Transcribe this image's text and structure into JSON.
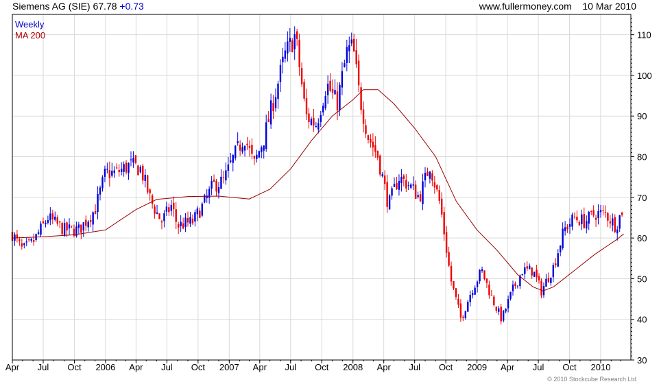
{
  "header": {
    "instrument": "Siemens AG (SIE)",
    "last": "67.78",
    "change": "+0.73",
    "site": "www.fullermoney.com",
    "date": "10 Mar 2010"
  },
  "footer": {
    "credit": "© 2010 Stockcube Research Ltd"
  },
  "colors": {
    "up": "#0000dd",
    "down": "#ee0000",
    "ma": "#990000",
    "grid": "#d9d9d9",
    "legend_weekly": "#0000cc",
    "legend_ma": "#aa0000"
  },
  "chart_data": {
    "type": "candlestick",
    "legend": [
      {
        "name": "Weekly"
      },
      {
        "name": "MA 200"
      }
    ],
    "x_tick_labels": [
      "Apr",
      "Jul",
      "Oct",
      "2006",
      "Apr",
      "Jul",
      "Oct",
      "2007",
      "Apr",
      "Jul",
      "Oct",
      "2008",
      "Apr",
      "Jul",
      "Oct",
      "2009",
      "Apr",
      "Jul",
      "Oct",
      "2010"
    ],
    "y_ticks": [
      30,
      40,
      50,
      60,
      70,
      80,
      90,
      100,
      110
    ],
    "ylim": [
      30,
      115
    ],
    "xlim": [
      "2005-04-01",
      "2010-03-31"
    ],
    "grid": true,
    "weekly_close_keypoints": [
      [
        "2005-04-01",
        61
      ],
      [
        "2005-05-01",
        57
      ],
      [
        "2005-06-01",
        59
      ],
      [
        "2005-07-15",
        65
      ],
      [
        "2005-09-01",
        62
      ],
      [
        "2005-10-15",
        62
      ],
      [
        "2005-12-01",
        67
      ],
      [
        "2006-01-01",
        76
      ],
      [
        "2006-02-01",
        76
      ],
      [
        "2006-03-15",
        78
      ],
      [
        "2006-04-15",
        77
      ],
      [
        "2006-05-15",
        69
      ],
      [
        "2006-06-15",
        64
      ],
      [
        "2006-07-15",
        68
      ],
      [
        "2006-08-01",
        63
      ],
      [
        "2006-09-15",
        64
      ],
      [
        "2006-10-15",
        68
      ],
      [
        "2006-11-15",
        73
      ],
      [
        "2006-12-15",
        74
      ],
      [
        "2007-01-15",
        80
      ],
      [
        "2007-02-15",
        85
      ],
      [
        "2007-03-15",
        78
      ],
      [
        "2007-04-15",
        85
      ],
      [
        "2007-05-15",
        95
      ],
      [
        "2007-06-15",
        105
      ],
      [
        "2007-07-15",
        110
      ],
      [
        "2007-08-15",
        90
      ],
      [
        "2007-09-15",
        88
      ],
      [
        "2007-10-15",
        98
      ],
      [
        "2007-11-15",
        93
      ],
      [
        "2007-12-15",
        106
      ],
      [
        "2008-01-01",
        107
      ],
      [
        "2008-01-20",
        95
      ],
      [
        "2008-02-15",
        85
      ],
      [
        "2008-03-15",
        80
      ],
      [
        "2008-04-15",
        68
      ],
      [
        "2008-05-15",
        75
      ],
      [
        "2008-06-15",
        73
      ],
      [
        "2008-07-15",
        70
      ],
      [
        "2008-08-15",
        78
      ],
      [
        "2008-09-15",
        68
      ],
      [
        "2008-10-15",
        50
      ],
      [
        "2008-11-15",
        40
      ],
      [
        "2008-12-15",
        47
      ],
      [
        "2009-01-15",
        52
      ],
      [
        "2009-02-15",
        45
      ],
      [
        "2009-03-15",
        40
      ],
      [
        "2009-04-15",
        47
      ],
      [
        "2009-05-15",
        52
      ],
      [
        "2009-06-15",
        52
      ],
      [
        "2009-07-10",
        47
      ],
      [
        "2009-08-15",
        53
      ],
      [
        "2009-09-15",
        62
      ],
      [
        "2009-10-15",
        65
      ],
      [
        "2009-11-15",
        64
      ],
      [
        "2009-12-15",
        66
      ],
      [
        "2010-01-15",
        66
      ],
      [
        "2010-02-15",
        63
      ],
      [
        "2010-03-10",
        67.78
      ]
    ],
    "ma200_keypoints": [
      [
        "2005-04-01",
        60
      ],
      [
        "2005-07-01",
        60.3
      ],
      [
        "2005-10-01",
        60.8
      ],
      [
        "2006-01-01",
        62
      ],
      [
        "2006-04-01",
        67
      ],
      [
        "2006-06-01",
        69.5
      ],
      [
        "2006-09-01",
        70.2
      ],
      [
        "2006-12-01",
        70.3
      ],
      [
        "2007-03-01",
        69.6
      ],
      [
        "2007-05-01",
        72
      ],
      [
        "2007-07-01",
        77
      ],
      [
        "2007-09-01",
        84
      ],
      [
        "2007-11-01",
        90
      ],
      [
        "2008-01-01",
        94
      ],
      [
        "2008-02-01",
        96.5
      ],
      [
        "2008-03-15",
        96.5
      ],
      [
        "2008-05-01",
        93
      ],
      [
        "2008-07-01",
        87
      ],
      [
        "2008-09-01",
        80
      ],
      [
        "2008-11-01",
        69
      ],
      [
        "2009-01-01",
        62
      ],
      [
        "2009-03-01",
        57
      ],
      [
        "2009-05-01",
        51
      ],
      [
        "2009-06-15",
        48
      ],
      [
        "2009-07-15",
        47
      ],
      [
        "2009-08-15",
        48
      ],
      [
        "2009-10-15",
        52
      ],
      [
        "2009-12-15",
        56
      ],
      [
        "2010-02-15",
        59.5
      ],
      [
        "2010-03-10",
        61
      ]
    ]
  }
}
